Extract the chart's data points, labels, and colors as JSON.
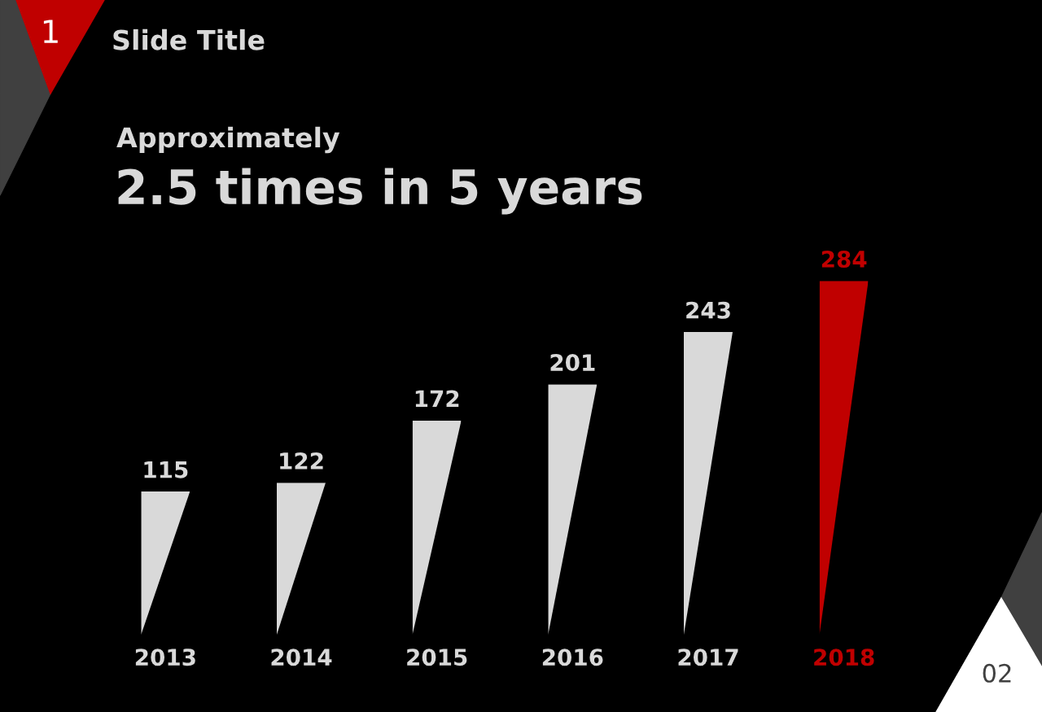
{
  "chart_data": {
    "type": "bar",
    "title": "Slide Title",
    "subtitle": "Approximately",
    "annotations": [
      "1",
      "2.5 times in 5 years",
      "02"
    ],
    "categories": [
      "2013",
      "2014",
      "2015",
      "2016",
      "2017",
      "2018"
    ],
    "values": [
      115,
      122,
      172,
      201,
      243,
      284
    ],
    "colors": [
      "#d9d9d9",
      "#d9d9d9",
      "#d9d9d9",
      "#d9d9d9",
      "#d9d9d9",
      "#c00000"
    ],
    "data_labels": true
  }
}
